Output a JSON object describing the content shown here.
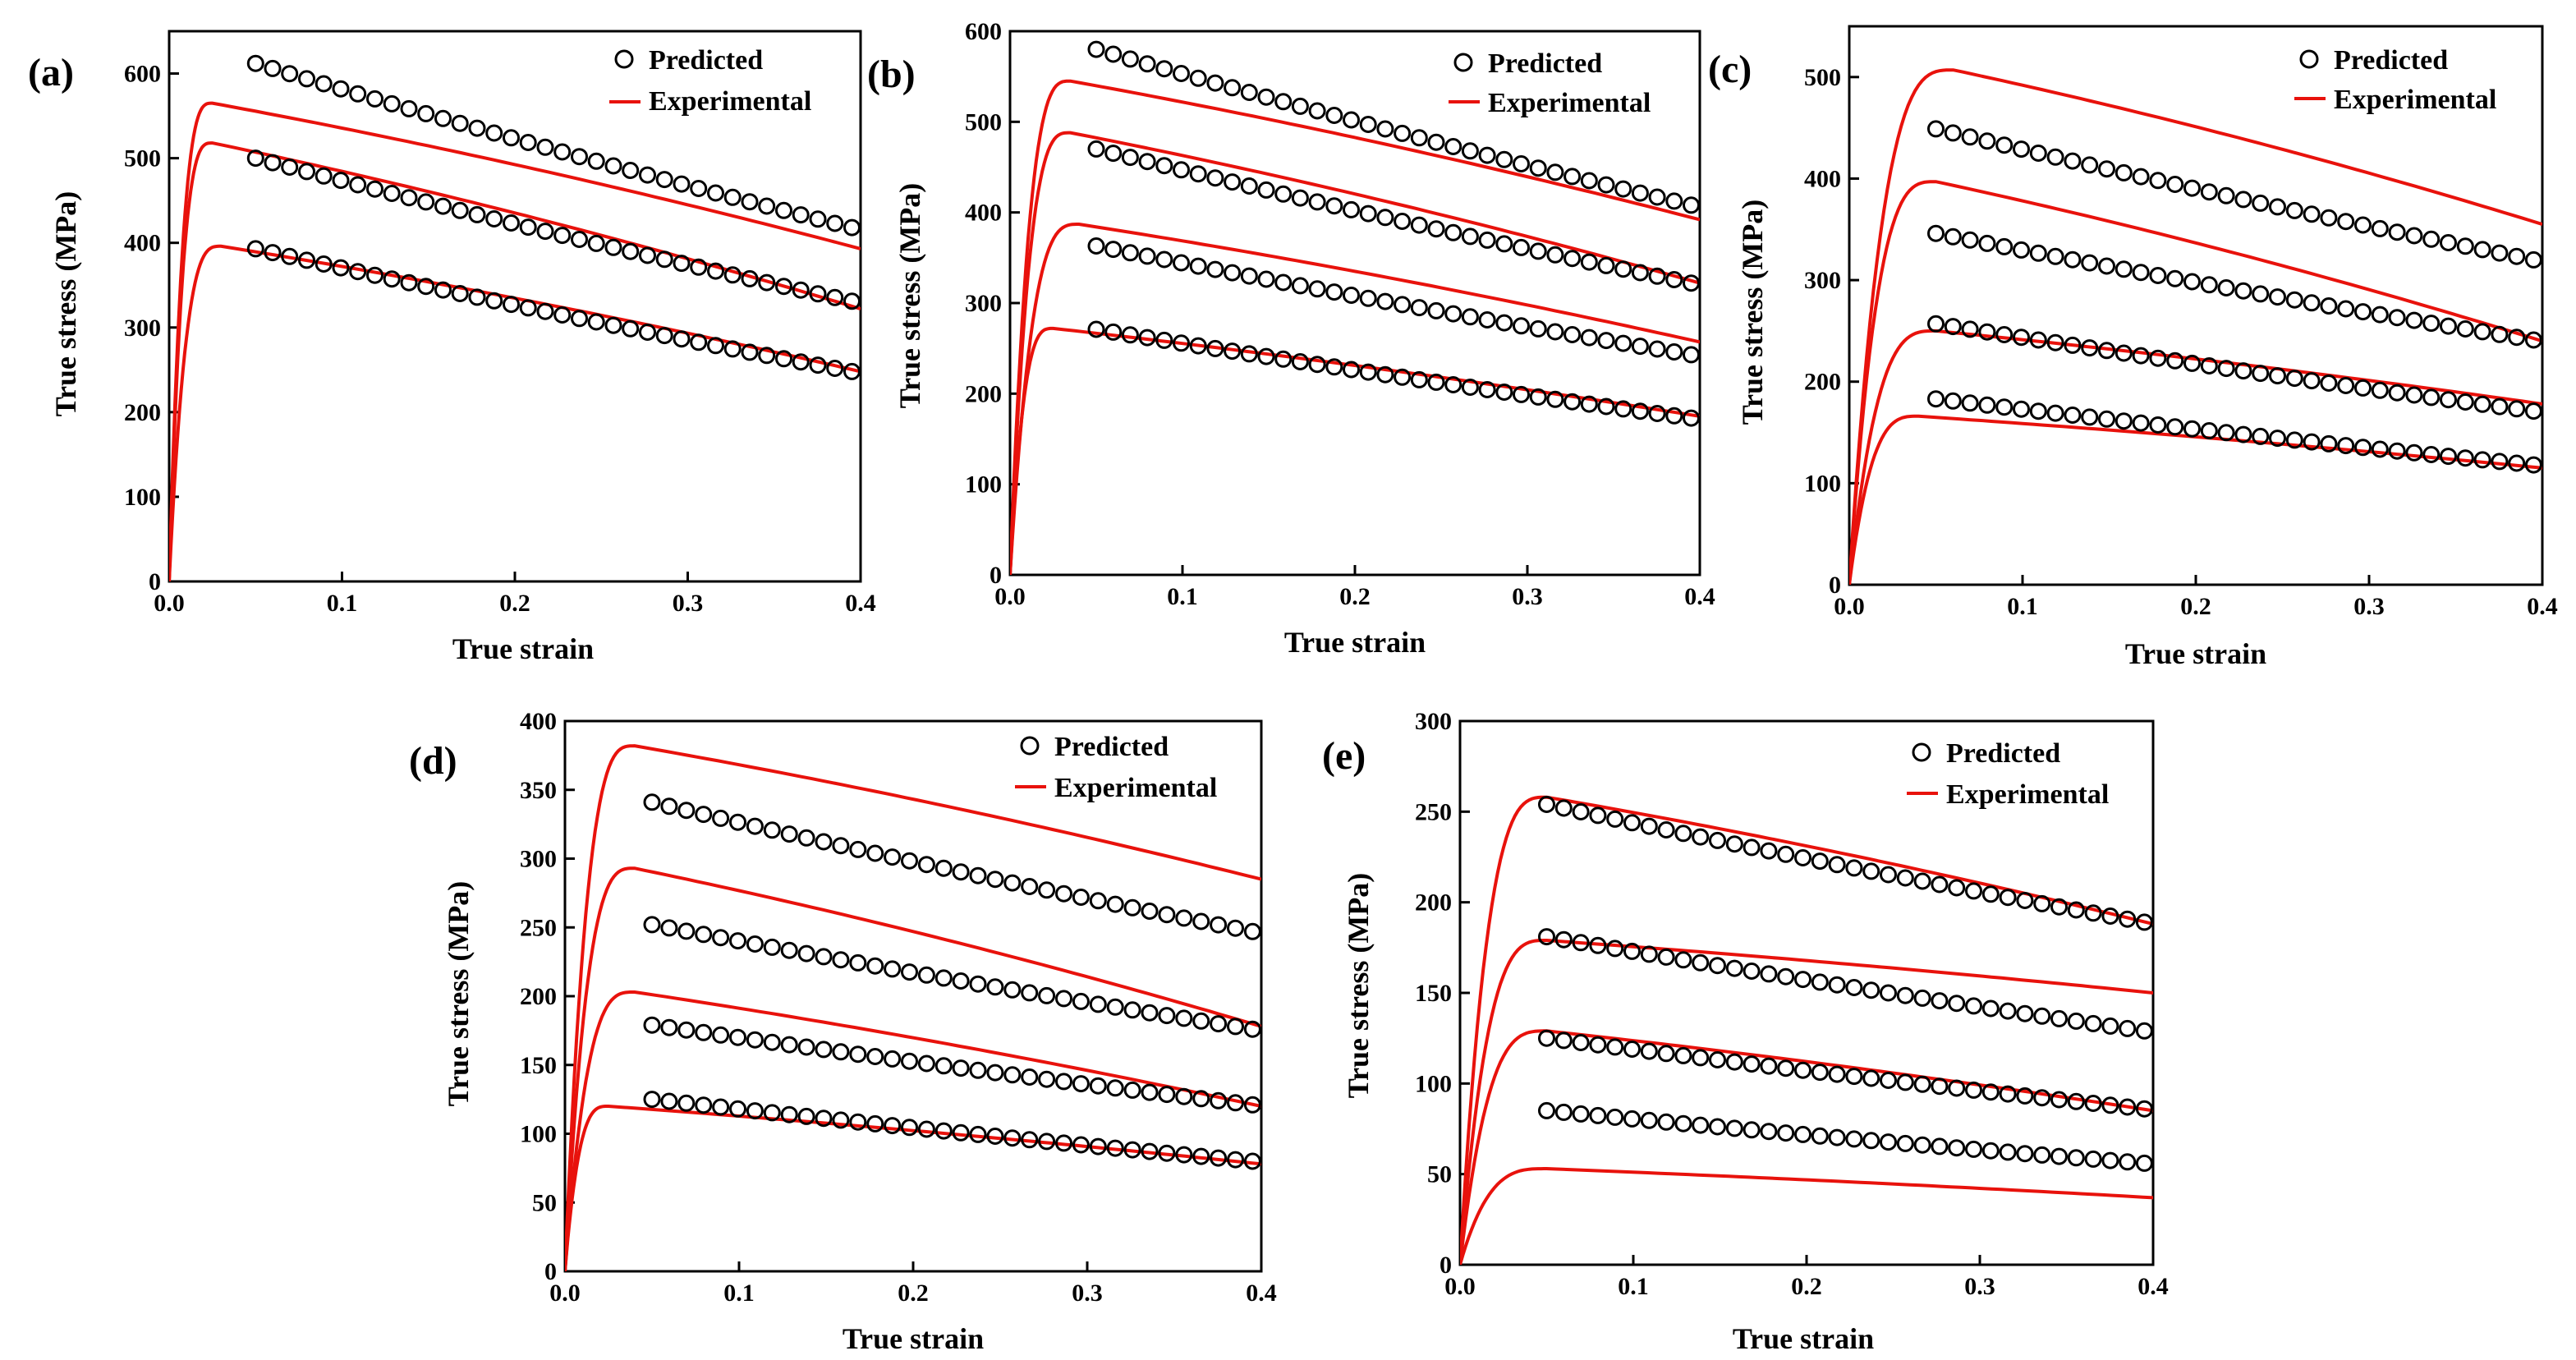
{
  "legend": {
    "predicted": "Predicted",
    "experimental": "Experimental"
  },
  "colors": {
    "experimental": "#e8120c",
    "predicted": "#000000",
    "axis": "#000000"
  },
  "chart_data": [
    {
      "panel": "(a)",
      "type": "line",
      "xlabel": "True strain",
      "ylabel": "True stress (MPa)",
      "xlim": [
        0,
        0.4
      ],
      "ylim": [
        0,
        650
      ],
      "xticks": [
        0.0,
        0.1,
        0.2,
        0.3,
        0.4
      ],
      "xtick_labels": [
        "0.0",
        "0.1",
        "0.2",
        "0.3",
        "0.4"
      ],
      "yticks": [
        0,
        100,
        200,
        300,
        400,
        500,
        600
      ],
      "ytick_labels": [
        "0",
        "100",
        "200",
        "300",
        "400",
        "500",
        "600"
      ],
      "series": [
        {
          "name": "Experimental",
          "peak": [
            0.025,
            565
          ],
          "end": 393
        },
        {
          "name": "Experimental",
          "peak": [
            0.025,
            518
          ],
          "end": 322
        },
        {
          "name": "Experimental",
          "peak": [
            0.03,
            396
          ],
          "end": 248
        },
        {
          "name": "Predicted",
          "start": [
            0.05,
            612
          ],
          "end": [
            0.395,
            418
          ]
        },
        {
          "name": "Predicted",
          "start": [
            0.05,
            500
          ],
          "end": [
            0.395,
            331
          ]
        },
        {
          "name": "Predicted",
          "start": [
            0.05,
            393
          ],
          "end": [
            0.395,
            248
          ]
        }
      ]
    },
    {
      "panel": "(b)",
      "type": "line",
      "xlabel": "True strain",
      "ylabel": "True stress (MPa)",
      "xlim": [
        0,
        0.4
      ],
      "ylim": [
        0,
        600
      ],
      "xticks": [
        0.0,
        0.1,
        0.2,
        0.3,
        0.4
      ],
      "xtick_labels": [
        "0.0",
        "0.1",
        "0.2",
        "0.3",
        "0.4"
      ],
      "yticks": [
        0,
        100,
        200,
        300,
        400,
        500,
        600
      ],
      "ytick_labels": [
        "0",
        "100",
        "200",
        "300",
        "400",
        "500",
        "600"
      ],
      "series": [
        {
          "name": "Experimental",
          "peak": [
            0.035,
            545
          ],
          "end": 392
        },
        {
          "name": "Experimental",
          "peak": [
            0.035,
            488
          ],
          "end": 322
        },
        {
          "name": "Experimental",
          "peak": [
            0.04,
            387
          ],
          "end": 257
        },
        {
          "name": "Experimental",
          "peak": [
            0.025,
            272
          ],
          "end": 175
        },
        {
          "name": "Predicted",
          "start": [
            0.05,
            580
          ],
          "end": [
            0.395,
            408
          ]
        },
        {
          "name": "Predicted",
          "start": [
            0.05,
            470
          ],
          "end": [
            0.395,
            322
          ]
        },
        {
          "name": "Predicted",
          "start": [
            0.05,
            363
          ],
          "end": [
            0.395,
            243
          ]
        },
        {
          "name": "Predicted",
          "start": [
            0.05,
            271
          ],
          "end": [
            0.395,
            173
          ]
        }
      ]
    },
    {
      "panel": "(c)",
      "type": "line",
      "xlabel": "True strain",
      "ylabel": "True stress (MPa)",
      "xlim": [
        0,
        0.4
      ],
      "ylim": [
        0,
        550
      ],
      "xticks": [
        0.0,
        0.1,
        0.2,
        0.3,
        0.4
      ],
      "xtick_labels": [
        "0.0",
        "0.1",
        "0.2",
        "0.3",
        "0.4"
      ],
      "yticks": [
        0,
        100,
        200,
        300,
        400,
        500
      ],
      "ytick_labels": [
        "0",
        "100",
        "200",
        "300",
        "400",
        "500"
      ],
      "series": [
        {
          "name": "Experimental",
          "peak": [
            0.06,
            507
          ],
          "end": 355
        },
        {
          "name": "Experimental",
          "peak": [
            0.05,
            397
          ],
          "end": 240
        },
        {
          "name": "Experimental",
          "peak": [
            0.05,
            250
          ],
          "end": 178
        },
        {
          "name": "Experimental",
          "peak": [
            0.04,
            166
          ],
          "end": 115
        },
        {
          "name": "Predicted",
          "start": [
            0.05,
            449
          ],
          "end": [
            0.395,
            320
          ]
        },
        {
          "name": "Predicted",
          "start": [
            0.05,
            346
          ],
          "end": [
            0.395,
            241
          ]
        },
        {
          "name": "Predicted",
          "start": [
            0.05,
            257
          ],
          "end": [
            0.395,
            171
          ]
        },
        {
          "name": "Predicted",
          "start": [
            0.05,
            183
          ],
          "end": [
            0.395,
            118
          ]
        }
      ]
    },
    {
      "panel": "(d)",
      "type": "line",
      "xlabel": "True strain",
      "ylabel": "True stress (MPa)",
      "xlim": [
        0,
        0.4
      ],
      "ylim": [
        0,
        400
      ],
      "xticks": [
        0.0,
        0.1,
        0.2,
        0.3,
        0.4
      ],
      "xtick_labels": [
        "0.0",
        "0.1",
        "0.2",
        "0.3",
        "0.4"
      ],
      "yticks": [
        0,
        50,
        100,
        150,
        200,
        250,
        300,
        350,
        400
      ],
      "ytick_labels": [
        "0",
        "50",
        "100",
        "150",
        "200",
        "250",
        "300",
        "350",
        "400"
      ],
      "series": [
        {
          "name": "Experimental",
          "peak": [
            0.04,
            382
          ],
          "end": 285
        },
        {
          "name": "Experimental",
          "peak": [
            0.04,
            293
          ],
          "end": 178
        },
        {
          "name": "Experimental",
          "peak": [
            0.04,
            203
          ],
          "end": 120
        },
        {
          "name": "Experimental",
          "peak": [
            0.025,
            120
          ],
          "end": 78
        },
        {
          "name": "Predicted",
          "start": [
            0.05,
            341
          ],
          "end": [
            0.395,
            247
          ]
        },
        {
          "name": "Predicted",
          "start": [
            0.05,
            252
          ],
          "end": [
            0.395,
            176
          ]
        },
        {
          "name": "Predicted",
          "start": [
            0.05,
            179
          ],
          "end": [
            0.395,
            121
          ]
        },
        {
          "name": "Predicted",
          "start": [
            0.05,
            125
          ],
          "end": [
            0.395,
            80
          ]
        }
      ]
    },
    {
      "panel": "(e)",
      "type": "line",
      "xlabel": "True strain",
      "ylabel": "True stress (MPa)",
      "xlim": [
        0,
        0.4
      ],
      "ylim": [
        0,
        300
      ],
      "xticks": [
        0.0,
        0.1,
        0.2,
        0.3,
        0.4
      ],
      "xtick_labels": [
        "0.0",
        "0.1",
        "0.2",
        "0.3",
        "0.4"
      ],
      "yticks": [
        0,
        50,
        100,
        150,
        200,
        250,
        300
      ],
      "ytick_labels": [
        "0",
        "50",
        "100",
        "150",
        "200",
        "250",
        "300"
      ],
      "series": [
        {
          "name": "Experimental",
          "peak": [
            0.05,
            258
          ],
          "end": 188
        },
        {
          "name": "Experimental",
          "peak": [
            0.05,
            179
          ],
          "end": 150
        },
        {
          "name": "Experimental",
          "peak": [
            0.05,
            129
          ],
          "end": 85
        },
        {
          "name": "Experimental",
          "peak": [
            0.05,
            53
          ],
          "end": 37
        },
        {
          "name": "Predicted",
          "start": [
            0.05,
            254
          ],
          "end": [
            0.395,
            189
          ]
        },
        {
          "name": "Predicted",
          "start": [
            0.05,
            181
          ],
          "end": [
            0.395,
            129
          ]
        },
        {
          "name": "Predicted",
          "start": [
            0.05,
            125
          ],
          "end": [
            0.395,
            86
          ]
        },
        {
          "name": "Predicted",
          "start": [
            0.05,
            85
          ],
          "end": [
            0.395,
            56
          ]
        }
      ]
    }
  ]
}
